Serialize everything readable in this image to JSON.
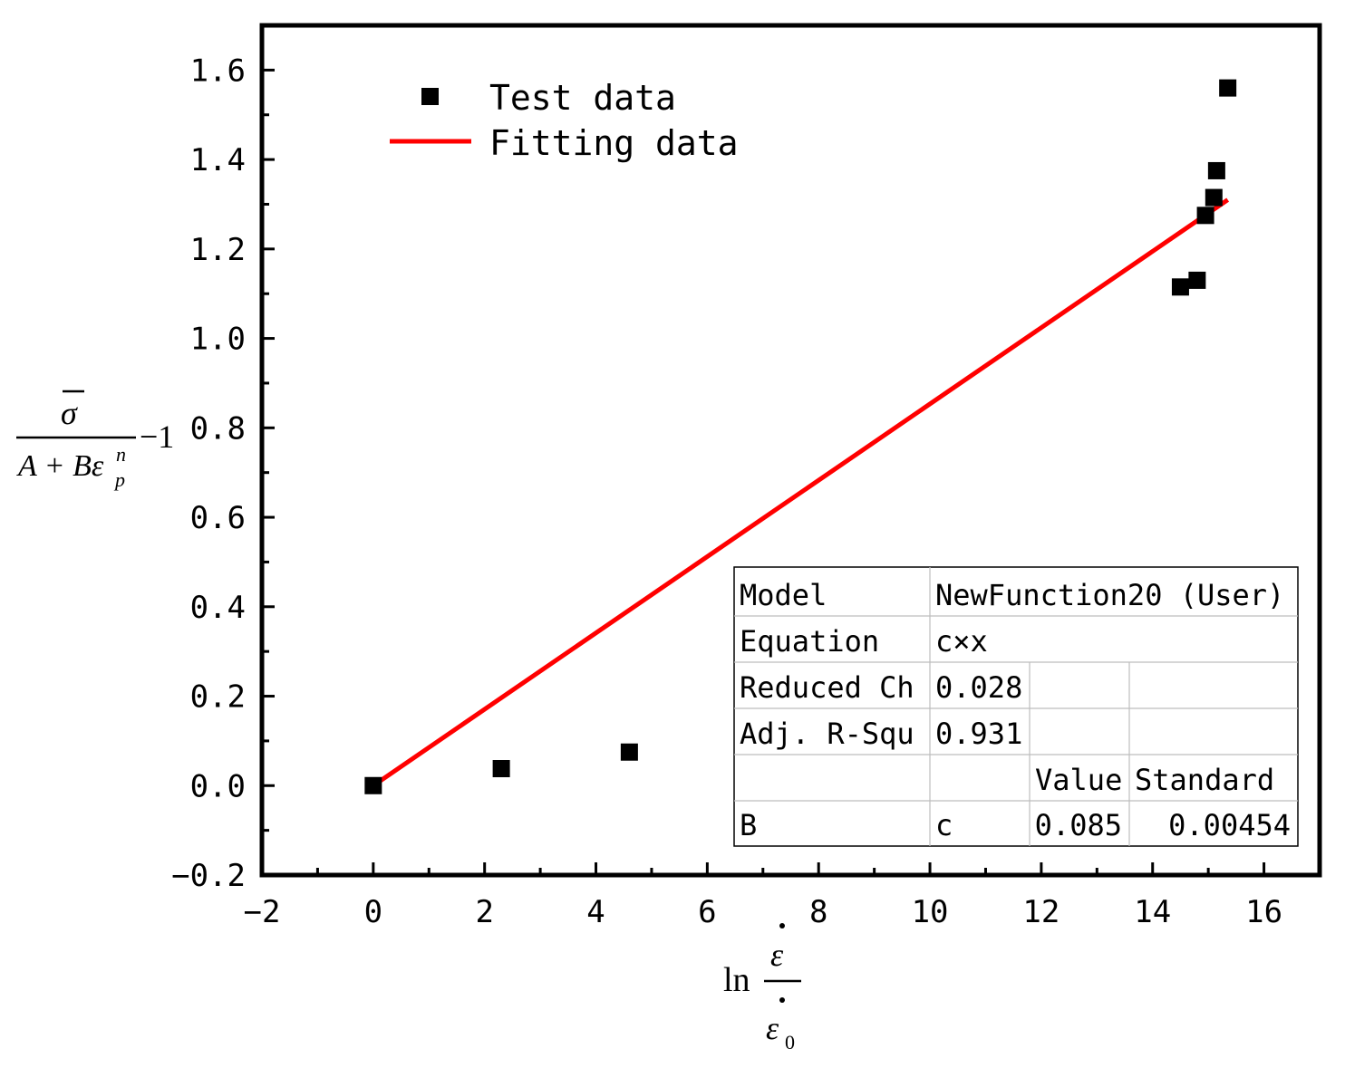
{
  "chart_data": {
    "type": "scatter",
    "xlim": [
      -2,
      17
    ],
    "ylim": [
      -0.2,
      1.7
    ],
    "x_ticks": [
      -2,
      0,
      2,
      4,
      6,
      8,
      10,
      12,
      14,
      16
    ],
    "x_tick_labels": [
      "−2",
      "0",
      "2",
      "4",
      "6",
      "8",
      "10",
      "12",
      "14",
      "16"
    ],
    "y_ticks": [
      -0.2,
      0.0,
      0.2,
      0.4,
      0.6,
      0.8,
      1.0,
      1.2,
      1.4,
      1.6
    ],
    "y_tick_labels": [
      "−0.2",
      "0.0",
      "0.2",
      "0.4",
      "0.6",
      "0.8",
      "1.0",
      "1.2",
      "1.4",
      "1.6"
    ],
    "grid": false,
    "legend_position": "top-left",
    "xlabel": {
      "prefix": "ln",
      "numerator": "ε",
      "denominator": "ε",
      "denominator_subscript": "0"
    },
    "ylabel": {
      "numerator": "σ",
      "denominator_lead": "A + Bε",
      "denominator_sup": "n",
      "denominator_sub": "p",
      "suffix": "−1"
    },
    "series": [
      {
        "name": "Test data",
        "kind": "scatter",
        "color": "#000000",
        "marker": "square",
        "x": [
          0,
          2.3,
          4.6,
          14.5,
          14.8,
          14.95,
          15.1,
          15.15,
          15.35
        ],
        "y": [
          0.0,
          0.038,
          0.075,
          1.115,
          1.13,
          1.275,
          1.315,
          1.375,
          1.56
        ]
      },
      {
        "name": "Fitting data",
        "kind": "line",
        "color": "#ff0000",
        "x": [
          0,
          15.35
        ],
        "y": [
          0.0,
          1.31
        ]
      }
    ],
    "fit_table": {
      "rows": [
        [
          "Model",
          "NewFunction20 (User)"
        ],
        [
          "Equation",
          "c×x"
        ],
        [
          "Reduced Ch",
          "0.028",
          "",
          ""
        ],
        [
          "Adj. R-Squ",
          "0.931",
          "",
          ""
        ],
        [
          "",
          "",
          "Value",
          "Standard"
        ],
        [
          "B",
          "c",
          "0.085",
          "0.00454"
        ]
      ]
    }
  }
}
